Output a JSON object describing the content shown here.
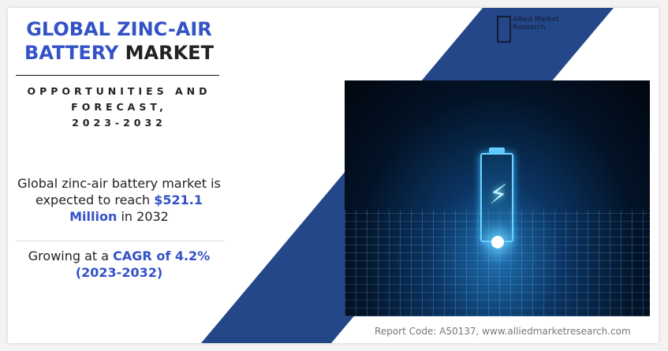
{
  "title": {
    "line1": "GLOBAL ZINC-AIR",
    "line2_blue": "BATTERY",
    "line2_dark": "MARKET"
  },
  "subtitle": {
    "line1": "OPPORTUNITIES AND",
    "line2": "FORECAST,",
    "line3": "2023-2032"
  },
  "stat1": {
    "pre": "Global zinc-air battery market is expected to reach",
    "value": "$521.1 Million",
    "post": "in 2032"
  },
  "stat2": {
    "pre": "Growing at a",
    "value": "CAGR of 4.2%",
    "period": "(2023-2032)"
  },
  "logo": {
    "text": "Allied Market Research"
  },
  "footer": {
    "report_code": "Report Code: A50137, www.alliedmarketresearch.com"
  },
  "colors": {
    "accent": "#3452c8",
    "band": "#24478a"
  }
}
